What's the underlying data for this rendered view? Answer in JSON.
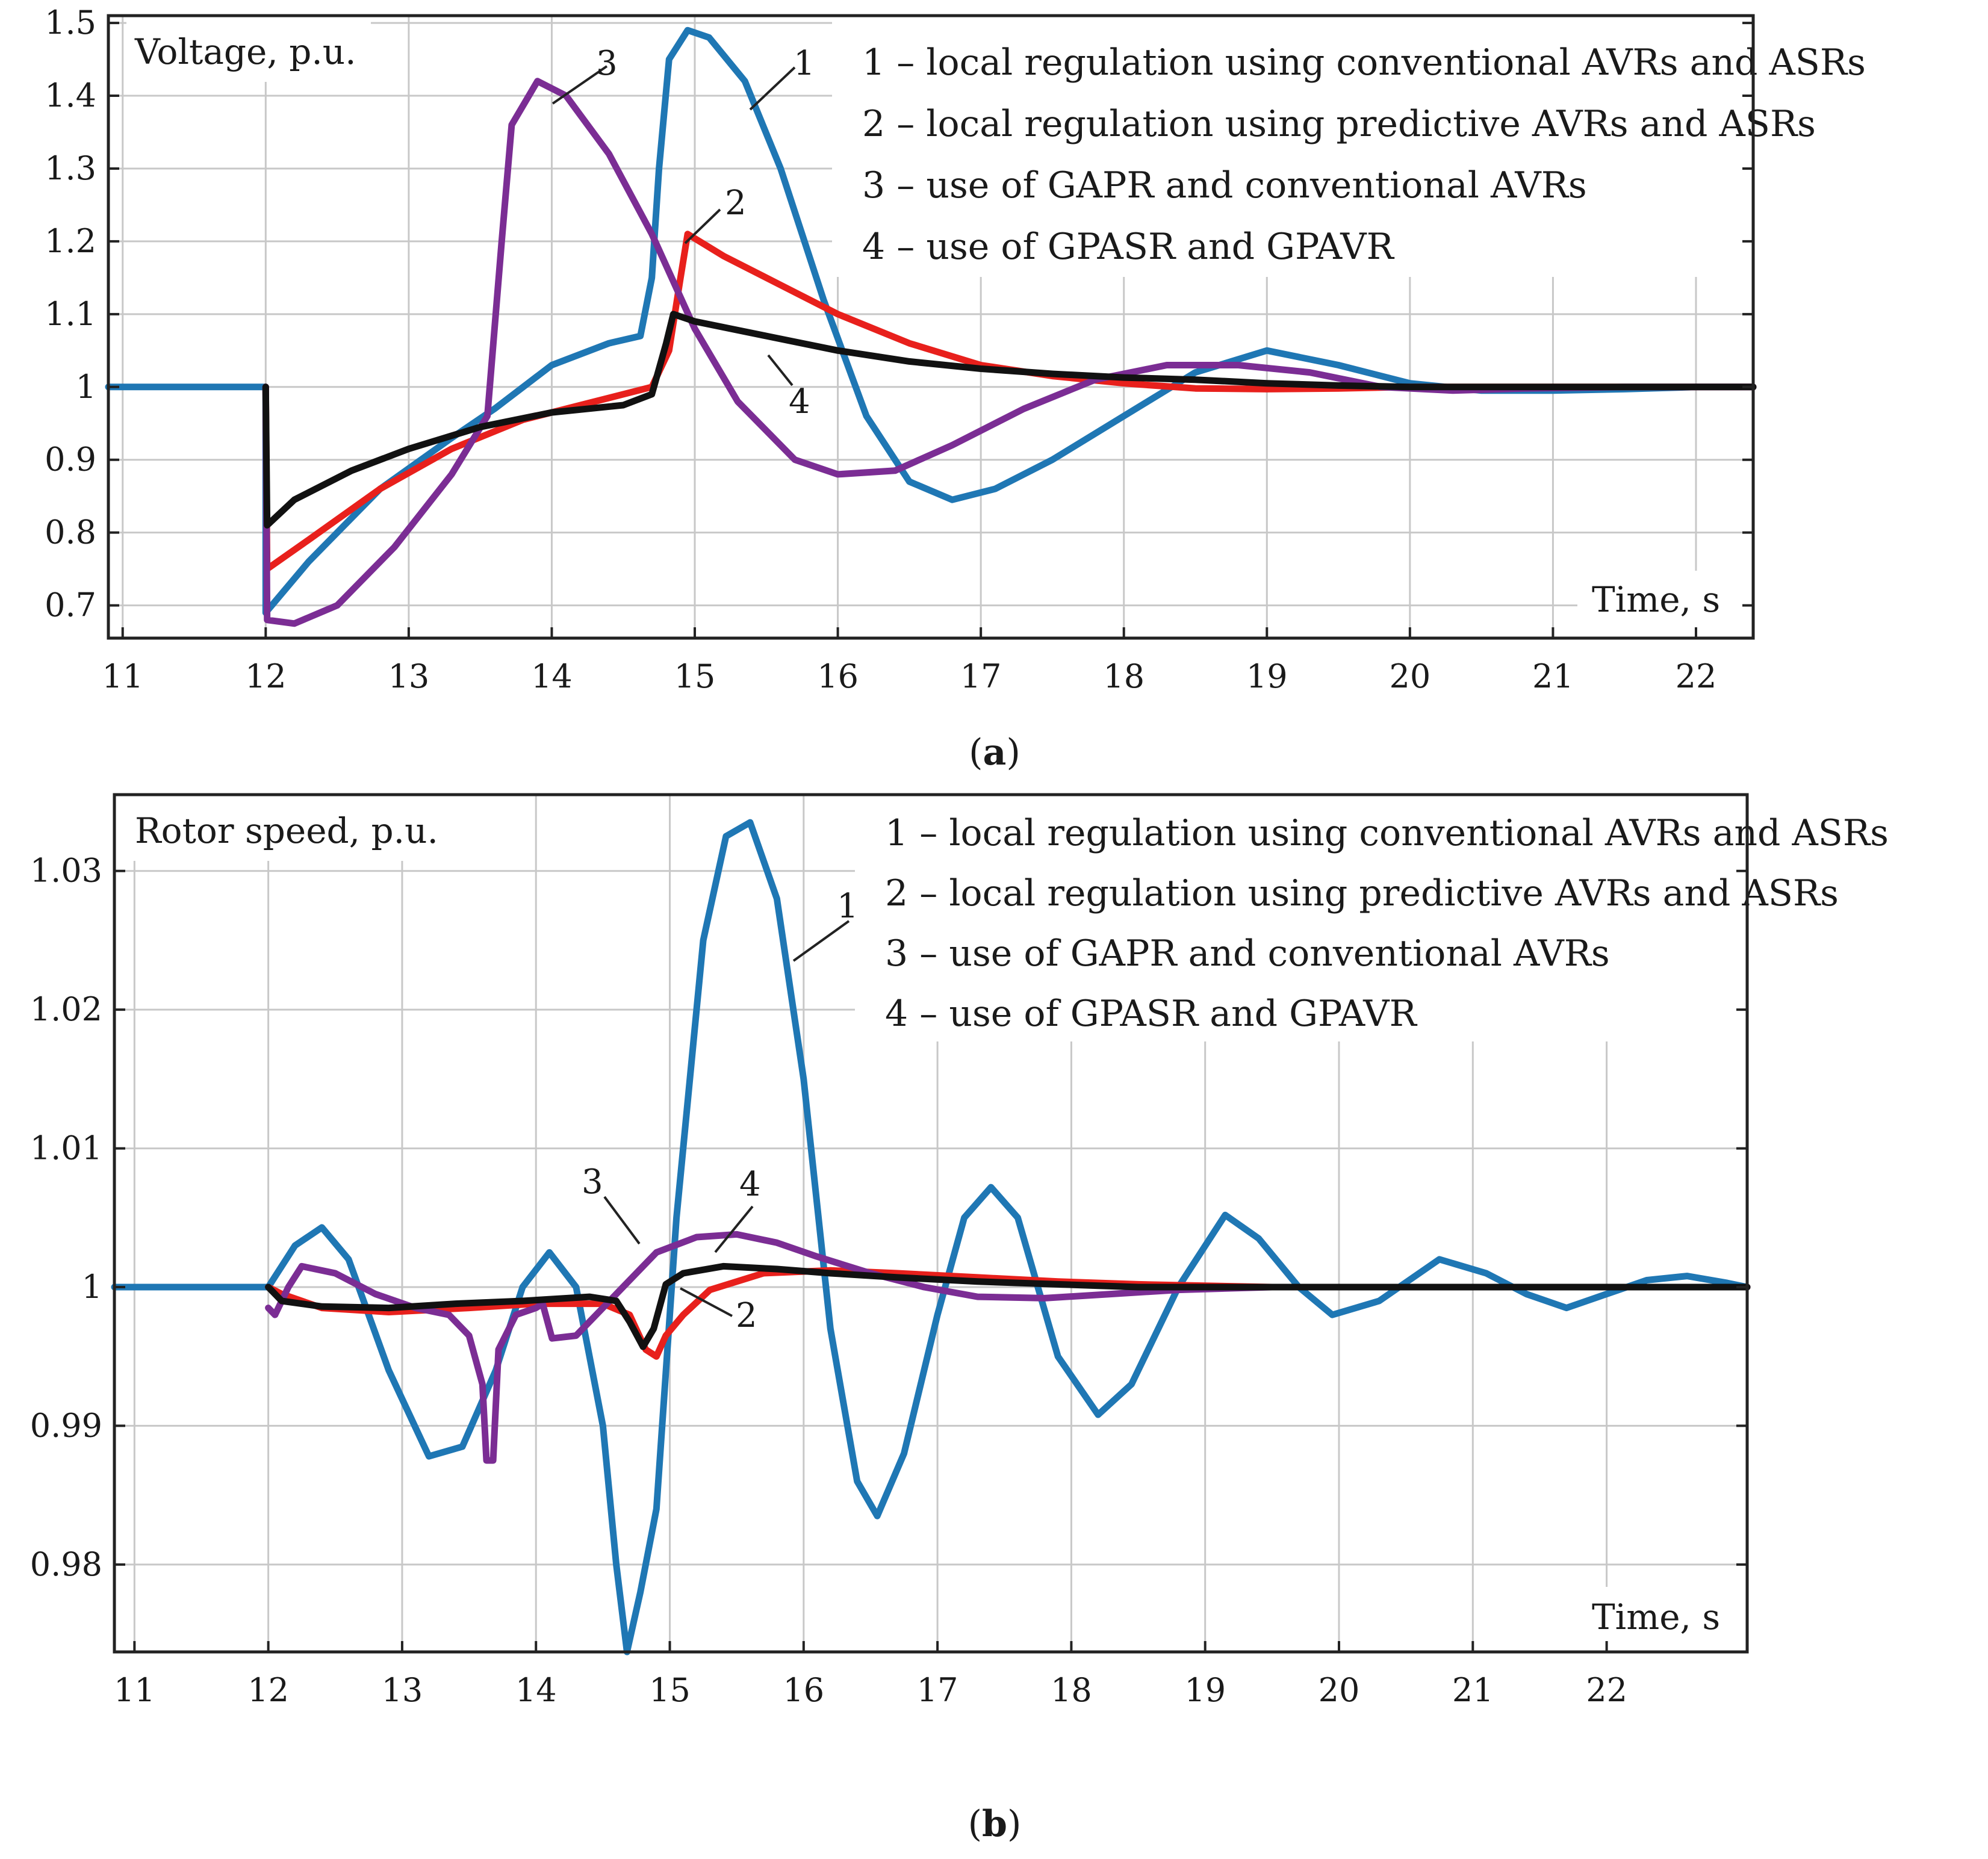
{
  "chart_data": [
    {
      "type": "line",
      "panel_label": "a",
      "ylabel": "Voltage, p.u.",
      "xlabel": "Time, s",
      "xlim": [
        10.9,
        22.4
      ],
      "ylim": [
        0.655,
        1.51
      ],
      "xticks": [
        11,
        12,
        13,
        14,
        15,
        16,
        17,
        18,
        19,
        20,
        21,
        22
      ],
      "yticks": [
        0.7,
        0.8,
        0.9,
        1,
        1.1,
        1.2,
        1.3,
        1.4,
        1.5
      ],
      "ytick_labels": [
        "0.7",
        "0.8",
        "0.9",
        "1",
        "1.1",
        "1.2",
        "1.3",
        "1.4",
        "1.5"
      ],
      "grid": true,
      "legend_position": "top-right",
      "legend": [
        "1 – local regulation using conventional AVRs and ASRs",
        "2 – local regulation using predictive AVRs and ASRs",
        "3 – use of GAPR and conventional AVRs",
        "4 – use of GPASR and GPAVR"
      ],
      "series": [
        {
          "name": "1",
          "color": "#1f77b4",
          "points": [
            [
              10.9,
              1.0
            ],
            [
              12.0,
              1.0
            ],
            [
              12.0,
              0.69
            ],
            [
              12.3,
              0.76
            ],
            [
              12.8,
              0.86
            ],
            [
              13.3,
              0.93
            ],
            [
              13.6,
              0.97
            ],
            [
              14.0,
              1.03
            ],
            [
              14.4,
              1.06
            ],
            [
              14.62,
              1.07
            ],
            [
              14.7,
              1.15
            ],
            [
              14.75,
              1.3
            ],
            [
              14.82,
              1.45
            ],
            [
              14.95,
              1.49
            ],
            [
              15.1,
              1.48
            ],
            [
              15.35,
              1.42
            ],
            [
              15.6,
              1.3
            ],
            [
              15.9,
              1.12
            ],
            [
              16.2,
              0.96
            ],
            [
              16.5,
              0.87
            ],
            [
              16.8,
              0.845
            ],
            [
              17.1,
              0.86
            ],
            [
              17.5,
              0.9
            ],
            [
              18.0,
              0.96
            ],
            [
              18.5,
              1.02
            ],
            [
              19.0,
              1.05
            ],
            [
              19.5,
              1.03
            ],
            [
              20.0,
              1.005
            ],
            [
              20.5,
              0.995
            ],
            [
              21.0,
              0.995
            ],
            [
              21.5,
              0.997
            ],
            [
              22.0,
              1.0
            ],
            [
              22.4,
              1.0
            ]
          ]
        },
        {
          "name": "2",
          "color": "#e8201c",
          "points": [
            [
              12.0,
              1.0
            ],
            [
              12.01,
              0.75
            ],
            [
              12.3,
              0.79
            ],
            [
              12.8,
              0.86
            ],
            [
              13.3,
              0.915
            ],
            [
              13.8,
              0.955
            ],
            [
              14.3,
              0.98
            ],
            [
              14.7,
              1.0
            ],
            [
              14.82,
              1.05
            ],
            [
              14.9,
              1.15
            ],
            [
              14.95,
              1.21
            ],
            [
              15.2,
              1.18
            ],
            [
              15.6,
              1.14
            ],
            [
              16.0,
              1.1
            ],
            [
              16.5,
              1.06
            ],
            [
              17.0,
              1.03
            ],
            [
              17.5,
              1.015
            ],
            [
              18.0,
              1.005
            ],
            [
              18.5,
              0.998
            ],
            [
              19.0,
              0.997
            ],
            [
              19.5,
              0.998
            ],
            [
              20.0,
              1.0
            ],
            [
              22.4,
              1.0
            ]
          ]
        },
        {
          "name": "3",
          "color": "#7b2d94",
          "points": [
            [
              12.0,
              1.0
            ],
            [
              12.01,
              0.68
            ],
            [
              12.2,
              0.675
            ],
            [
              12.5,
              0.7
            ],
            [
              12.9,
              0.78
            ],
            [
              13.3,
              0.88
            ],
            [
              13.55,
              0.96
            ],
            [
              13.65,
              1.2
            ],
            [
              13.72,
              1.36
            ],
            [
              13.9,
              1.42
            ],
            [
              14.1,
              1.4
            ],
            [
              14.4,
              1.32
            ],
            [
              14.7,
              1.21
            ],
            [
              15.0,
              1.08
            ],
            [
              15.3,
              0.98
            ],
            [
              15.7,
              0.9
            ],
            [
              16.0,
              0.88
            ],
            [
              16.4,
              0.885
            ],
            [
              16.8,
              0.92
            ],
            [
              17.3,
              0.97
            ],
            [
              17.8,
              1.01
            ],
            [
              18.3,
              1.03
            ],
            [
              18.8,
              1.03
            ],
            [
              19.3,
              1.02
            ],
            [
              19.8,
              1.0
            ],
            [
              20.3,
              0.995
            ],
            [
              20.8,
              0.998
            ],
            [
              21.5,
              1.0
            ],
            [
              22.4,
              1.0
            ]
          ]
        },
        {
          "name": "4",
          "color": "#111111",
          "points": [
            [
              12.0,
              1.0
            ],
            [
              12.01,
              0.81
            ],
            [
              12.2,
              0.845
            ],
            [
              12.6,
              0.885
            ],
            [
              13.0,
              0.915
            ],
            [
              13.5,
              0.945
            ],
            [
              14.0,
              0.965
            ],
            [
              14.5,
              0.975
            ],
            [
              14.7,
              0.99
            ],
            [
              14.8,
              1.06
            ],
            [
              14.85,
              1.1
            ],
            [
              15.0,
              1.09
            ],
            [
              15.5,
              1.07
            ],
            [
              16.0,
              1.05
            ],
            [
              16.5,
              1.035
            ],
            [
              17.0,
              1.025
            ],
            [
              17.5,
              1.018
            ],
            [
              18.0,
              1.013
            ],
            [
              18.5,
              1.01
            ],
            [
              19.0,
              1.005
            ],
            [
              19.5,
              1.002
            ],
            [
              20.0,
              1.0
            ],
            [
              22.4,
              1.0
            ]
          ]
        }
      ],
      "curve_labels": [
        "1",
        "2",
        "3",
        "4"
      ],
      "caption_open": "(",
      "caption_letter": "a",
      "caption_close": ")"
    },
    {
      "type": "line",
      "panel_label": "b",
      "ylabel": "Rotor speed, p.u.",
      "xlabel": "Time, s",
      "xlim": [
        10.85,
        23.05
      ],
      "ylim": [
        0.9737,
        1.0355
      ],
      "xticks": [
        11,
        12,
        13,
        14,
        15,
        16,
        17,
        18,
        19,
        20,
        21,
        22
      ],
      "yticks": [
        0.98,
        0.99,
        1.0,
        1.01,
        1.02,
        1.03
      ],
      "ytick_labels": [
        "0.98",
        "0.99",
        "1",
        "1.01",
        "1.02",
        "1.03"
      ],
      "grid": true,
      "legend_position": "top-right",
      "legend": [
        "1 – local regulation using conventional AVRs and ASRs",
        "2 – local regulation using predictive AVRs and ASRs",
        "3 – use of GAPR and conventional AVRs",
        "4 – use of GPASR and GPAVR"
      ],
      "series": [
        {
          "name": "1",
          "color": "#1f77b4",
          "points": [
            [
              10.85,
              1.0
            ],
            [
              11.8,
              1.0
            ],
            [
              12.0,
              1.0
            ],
            [
              12.2,
              1.003
            ],
            [
              12.4,
              1.0043
            ],
            [
              12.6,
              1.002
            ],
            [
              12.9,
              0.994
            ],
            [
              13.2,
              0.9878
            ],
            [
              13.45,
              0.9885
            ],
            [
              13.7,
              0.994
            ],
            [
              13.9,
              1.0
            ],
            [
              14.1,
              1.0025
            ],
            [
              14.3,
              1.0
            ],
            [
              14.5,
              0.99
            ],
            [
              14.6,
              0.98
            ],
            [
              14.68,
              0.9737
            ],
            [
              14.78,
              0.978
            ],
            [
              14.9,
              0.984
            ],
            [
              15.05,
              1.005
            ],
            [
              15.25,
              1.025
            ],
            [
              15.42,
              1.0325
            ],
            [
              15.6,
              1.0335
            ],
            [
              15.8,
              1.028
            ],
            [
              16.0,
              1.015
            ],
            [
              16.2,
              0.997
            ],
            [
              16.4,
              0.986
            ],
            [
              16.55,
              0.9835
            ],
            [
              16.75,
              0.988
            ],
            [
              17.0,
              0.998
            ],
            [
              17.2,
              1.005
            ],
            [
              17.4,
              1.0072
            ],
            [
              17.6,
              1.005
            ],
            [
              17.9,
              0.995
            ],
            [
              18.2,
              0.9908
            ],
            [
              18.45,
              0.993
            ],
            [
              18.8,
              1.0
            ],
            [
              19.15,
              1.0052
            ],
            [
              19.4,
              1.0035
            ],
            [
              19.7,
              1.0
            ],
            [
              19.95,
              0.998
            ],
            [
              20.3,
              0.999
            ],
            [
              20.75,
              1.002
            ],
            [
              21.1,
              1.001
            ],
            [
              21.4,
              0.9995
            ],
            [
              21.7,
              0.9985
            ],
            [
              22.0,
              0.9995
            ],
            [
              22.3,
              1.0005
            ],
            [
              22.6,
              1.0008
            ],
            [
              22.9,
              1.0003
            ],
            [
              23.05,
              1.0
            ]
          ]
        },
        {
          "name": "2",
          "color": "#e8201c",
          "points": [
            [
              12.0,
              1.0
            ],
            [
              12.1,
              0.9995
            ],
            [
              12.4,
              0.9985
            ],
            [
              12.9,
              0.9982
            ],
            [
              13.5,
              0.9985
            ],
            [
              14.0,
              0.9988
            ],
            [
              14.5,
              0.9988
            ],
            [
              14.7,
              0.998
            ],
            [
              14.82,
              0.9955
            ],
            [
              14.9,
              0.995
            ],
            [
              14.97,
              0.9965
            ],
            [
              15.1,
              0.998
            ],
            [
              15.3,
              0.9998
            ],
            [
              15.7,
              1.001
            ],
            [
              16.2,
              1.0012
            ],
            [
              16.7,
              1.001
            ],
            [
              17.3,
              1.0007
            ],
            [
              17.9,
              1.0004
            ],
            [
              18.5,
              1.0002
            ],
            [
              19.5,
              1.0
            ],
            [
              23.05,
              1.0
            ]
          ]
        },
        {
          "name": "3",
          "color": "#7b2d94",
          "points": [
            [
              12.0,
              0.9985
            ],
            [
              12.05,
              0.998
            ],
            [
              12.15,
              1.0
            ],
            [
              12.25,
              1.0015
            ],
            [
              12.5,
              1.001
            ],
            [
              12.8,
              0.9995
            ],
            [
              13.1,
              0.9985
            ],
            [
              13.35,
              0.998
            ],
            [
              13.5,
              0.9965
            ],
            [
              13.6,
              0.993
            ],
            [
              13.63,
              0.9875
            ],
            [
              13.68,
              0.9875
            ],
            [
              13.72,
              0.9955
            ],
            [
              13.85,
              0.998
            ],
            [
              14.0,
              0.9985
            ],
            [
              14.05,
              0.9988
            ],
            [
              14.12,
              0.9963
            ],
            [
              14.3,
              0.9965
            ],
            [
              14.6,
              0.9995
            ],
            [
              14.9,
              1.0025
            ],
            [
              15.2,
              1.0036
            ],
            [
              15.5,
              1.0038
            ],
            [
              15.8,
              1.0032
            ],
            [
              16.1,
              1.0022
            ],
            [
              16.5,
              1.001
            ],
            [
              16.9,
              1.0
            ],
            [
              17.3,
              0.9993
            ],
            [
              17.8,
              0.9992
            ],
            [
              18.3,
              0.9995
            ],
            [
              18.8,
              0.9998
            ],
            [
              19.5,
              1.0
            ],
            [
              23.05,
              1.0
            ]
          ]
        },
        {
          "name": "4",
          "color": "#111111",
          "points": [
            [
              12.0,
              1.0
            ],
            [
              12.1,
              0.999
            ],
            [
              12.4,
              0.9986
            ],
            [
              12.9,
              0.9985
            ],
            [
              13.4,
              0.9988
            ],
            [
              13.9,
              0.999
            ],
            [
              14.4,
              0.9993
            ],
            [
              14.6,
              0.999
            ],
            [
              14.7,
              0.9975
            ],
            [
              14.8,
              0.9957
            ],
            [
              14.88,
              0.997
            ],
            [
              14.97,
              1.0002
            ],
            [
              15.1,
              1.001
            ],
            [
              15.4,
              1.0015
            ],
            [
              15.8,
              1.0013
            ],
            [
              16.2,
              1.001
            ],
            [
              16.7,
              1.0007
            ],
            [
              17.3,
              1.0004
            ],
            [
              17.9,
              1.0002
            ],
            [
              18.5,
              1.0
            ],
            [
              23.05,
              1.0
            ]
          ]
        }
      ],
      "curve_labels": [
        "1",
        "2",
        "3",
        "4"
      ],
      "caption_open": "(",
      "caption_letter": "b",
      "caption_close": ")"
    }
  ]
}
